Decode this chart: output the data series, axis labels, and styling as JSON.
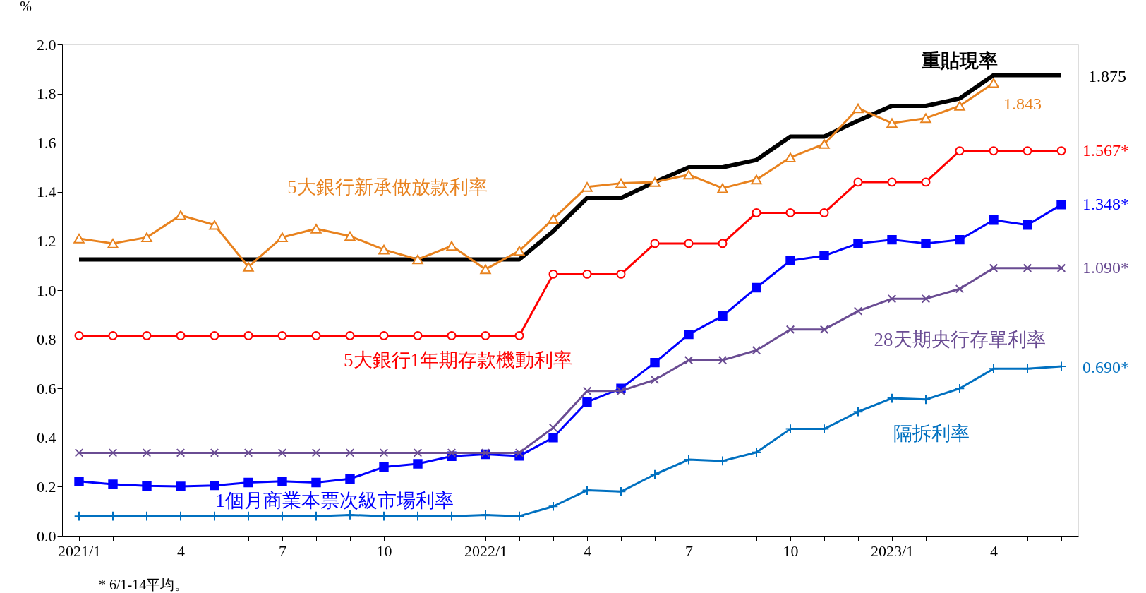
{
  "chart_data": {
    "type": "line",
    "ylabel": "%",
    "categories": [
      "2021/1",
      null,
      null,
      "4",
      null,
      null,
      "7",
      null,
      null,
      "10",
      null,
      null,
      "2022/1",
      null,
      null,
      "4",
      null,
      null,
      "7",
      null,
      null,
      "10",
      null,
      null,
      "2023/1",
      null,
      null,
      "4",
      null,
      null
    ],
    "ylim": [
      0,
      2.0
    ],
    "yticks": [
      {
        "value": 0,
        "label": "0.0"
      },
      0.2,
      0.4,
      0.6,
      0.8,
      {
        "value": 1.0,
        "label": "1.0"
      },
      1.2,
      1.4,
      1.6,
      1.8,
      {
        "value": 2.0,
        "label": "2.0"
      }
    ],
    "grid": false,
    "legend": false,
    "series": [
      {
        "name": "重貼現率",
        "color": "#000000",
        "marker": "none",
        "values": [
          1.125,
          1.125,
          1.125,
          1.125,
          1.125,
          1.125,
          1.125,
          1.125,
          1.125,
          1.125,
          1.125,
          1.125,
          1.125,
          1.125,
          1.24,
          1.375,
          1.375,
          1.44,
          1.5,
          1.5,
          1.53,
          1.625,
          1.625,
          1.69,
          1.75,
          1.75,
          1.78,
          1.875,
          1.875,
          1.875
        ],
        "value_labels": [
          null,
          null,
          null,
          null,
          null,
          null,
          null,
          null,
          null,
          null,
          null,
          null,
          null,
          null,
          null,
          null,
          null,
          null,
          null,
          null,
          null,
          null,
          null,
          null,
          null,
          null,
          null,
          null,
          null,
          "1.875"
        ]
      },
      {
        "name": "5大銀行新承做放款利率",
        "color": "#e8821e",
        "marker": "triangle",
        "values": [
          1.21,
          1.19,
          1.215,
          1.305,
          1.265,
          1.095,
          1.215,
          1.25,
          1.22,
          1.165,
          1.125,
          1.18,
          1.085,
          1.16,
          1.29,
          1.42,
          1.435,
          1.44,
          1.47,
          1.415,
          1.45,
          1.54,
          1.595,
          1.74,
          1.68,
          1.7,
          1.75,
          1.843,
          null,
          null
        ],
        "value_labels": [
          null,
          null,
          null,
          null,
          null,
          null,
          null,
          null,
          null,
          null,
          null,
          null,
          null,
          null,
          null,
          null,
          null,
          null,
          null,
          null,
          null,
          null,
          null,
          null,
          null,
          null,
          null,
          "1.843",
          null,
          null
        ]
      },
      {
        "name": "5大銀行1年期存款機動利率",
        "color": "#ff0000",
        "marker": "circle",
        "values": [
          0.815,
          0.815,
          0.815,
          0.815,
          0.815,
          0.815,
          0.815,
          0.815,
          0.815,
          0.815,
          0.815,
          0.815,
          0.815,
          0.815,
          1.065,
          1.065,
          1.065,
          1.19,
          1.19,
          1.19,
          1.315,
          1.315,
          1.315,
          1.44,
          1.44,
          1.44,
          1.567,
          1.567,
          1.567,
          1.567
        ],
        "value_labels": [
          null,
          null,
          null,
          null,
          null,
          null,
          null,
          null,
          null,
          null,
          null,
          null,
          null,
          null,
          null,
          null,
          null,
          null,
          null,
          null,
          null,
          null,
          null,
          null,
          null,
          null,
          null,
          null,
          null,
          "1.567*"
        ]
      },
      {
        "name": "1個月商業本票次級市場利率",
        "color": "#0000ff",
        "marker": "square",
        "values": [
          0.222,
          0.21,
          0.203,
          0.201,
          0.205,
          0.217,
          0.222,
          0.217,
          0.232,
          0.28,
          0.293,
          0.324,
          0.332,
          0.325,
          0.4,
          0.545,
          0.6,
          0.705,
          0.82,
          0.895,
          1.01,
          1.12,
          1.14,
          1.19,
          1.205,
          1.19,
          1.205,
          1.285,
          1.265,
          1.348
        ],
        "value_labels": [
          null,
          null,
          null,
          null,
          null,
          null,
          null,
          null,
          null,
          null,
          null,
          null,
          null,
          null,
          null,
          null,
          null,
          null,
          null,
          null,
          null,
          null,
          null,
          null,
          null,
          null,
          null,
          null,
          null,
          "1.348*"
        ]
      },
      {
        "name": "28天期央行存單利率",
        "color": "#6a4c93",
        "marker": "cross",
        "values": [
          0.338,
          0.338,
          0.338,
          0.338,
          0.338,
          0.338,
          0.338,
          0.338,
          0.338,
          0.338,
          0.338,
          0.338,
          0.338,
          0.338,
          0.44,
          0.59,
          0.59,
          0.635,
          0.715,
          0.715,
          0.755,
          0.84,
          0.84,
          0.915,
          0.965,
          0.965,
          1.005,
          1.09,
          1.09,
          1.09
        ],
        "value_labels": [
          null,
          null,
          null,
          null,
          null,
          null,
          null,
          null,
          null,
          null,
          null,
          null,
          null,
          null,
          null,
          null,
          null,
          null,
          null,
          null,
          null,
          null,
          null,
          null,
          null,
          null,
          null,
          null,
          null,
          "1.090*"
        ]
      },
      {
        "name": "隔拆利率",
        "color": "#0070c0",
        "marker": "plus",
        "values": [
          0.08,
          0.08,
          0.08,
          0.08,
          0.08,
          0.08,
          0.08,
          0.08,
          0.085,
          0.08,
          0.08,
          0.08,
          0.085,
          0.08,
          0.12,
          0.185,
          0.18,
          0.25,
          0.31,
          0.305,
          0.34,
          0.435,
          0.435,
          0.505,
          0.56,
          0.555,
          0.6,
          0.68,
          0.68,
          0.69
        ],
        "value_labels": [
          null,
          null,
          null,
          null,
          null,
          null,
          null,
          null,
          null,
          null,
          null,
          null,
          null,
          null,
          null,
          null,
          null,
          null,
          null,
          null,
          null,
          null,
          null,
          null,
          null,
          null,
          null,
          null,
          null,
          "0.690*"
        ]
      }
    ],
    "annotations": [
      "* 6/1-14平均。"
    ]
  }
}
